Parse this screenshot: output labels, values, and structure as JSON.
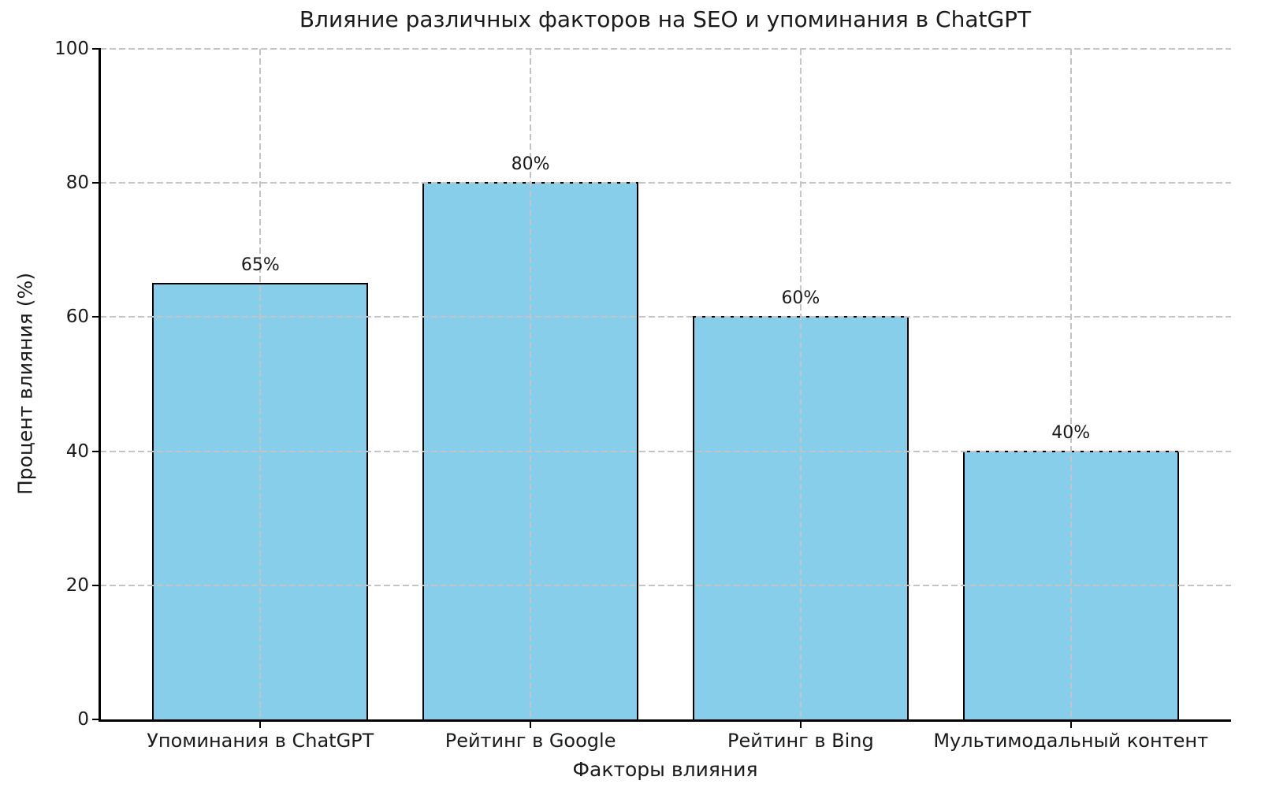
{
  "chart_data": {
    "type": "bar",
    "title": "Влияние различных факторов на SEO и упоминания в ChatGPT",
    "xlabel": "Факторы влияния",
    "ylabel": "Процент влияния (%)",
    "categories": [
      "Упоминания в ChatGPT",
      "Рейтинг в Google",
      "Рейтинг в Bing",
      "Мультимодальный контент"
    ],
    "values": [
      65,
      80,
      60,
      40
    ],
    "value_labels": [
      "65%",
      "80%",
      "60%",
      "40%"
    ],
    "ylim": [
      0,
      100
    ],
    "yticks": [
      0,
      20,
      40,
      60,
      80,
      100
    ],
    "grid": {
      "style": "dashed",
      "axes": "both",
      "color": "#c4c4c4",
      "above_bars": true
    },
    "legend_position": "none",
    "bar_color": "#87CEEB",
    "bar_edge_color": "#000000",
    "text_color": "#1a1a1a",
    "background_color": "#ffffff"
  }
}
